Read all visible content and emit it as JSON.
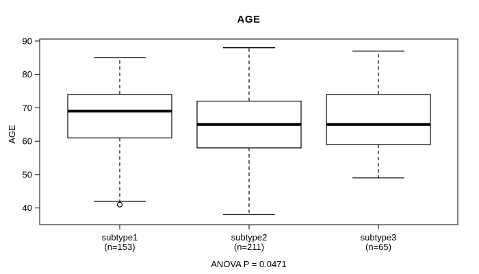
{
  "figure": {
    "background_color": "#ffffff",
    "line_color": "#000000"
  },
  "chart_data": {
    "type": "boxplot",
    "title": "AGE",
    "ylabel": "AGE",
    "xlabel": "",
    "annotation": "ANOVA P = 0.0471",
    "anova_p": 0.0471,
    "categories": [
      "subtype1",
      "subtype2",
      "subtype3"
    ],
    "category_sublabels": [
      "(n=153)",
      "(n=211)",
      "(n=65)"
    ],
    "sample_sizes": [
      153,
      211,
      65
    ],
    "yticks": [
      40,
      50,
      60,
      70,
      80,
      90
    ],
    "ylim": [
      35.0,
      90.6
    ],
    "grid": false,
    "legend": "none",
    "series": [
      {
        "name": "subtype1",
        "n": 153,
        "lower_whisker": 42,
        "q1": 61,
        "median": 69,
        "q3": 74,
        "upper_whisker": 85,
        "outliers": [
          41
        ]
      },
      {
        "name": "subtype2",
        "n": 211,
        "lower_whisker": 38,
        "q1": 58,
        "median": 65,
        "q3": 72,
        "upper_whisker": 88,
        "outliers": []
      },
      {
        "name": "subtype3",
        "n": 65,
        "lower_whisker": 49,
        "q1": 59,
        "median": 65,
        "q3": 74,
        "upper_whisker": 87,
        "outliers": []
      }
    ]
  }
}
